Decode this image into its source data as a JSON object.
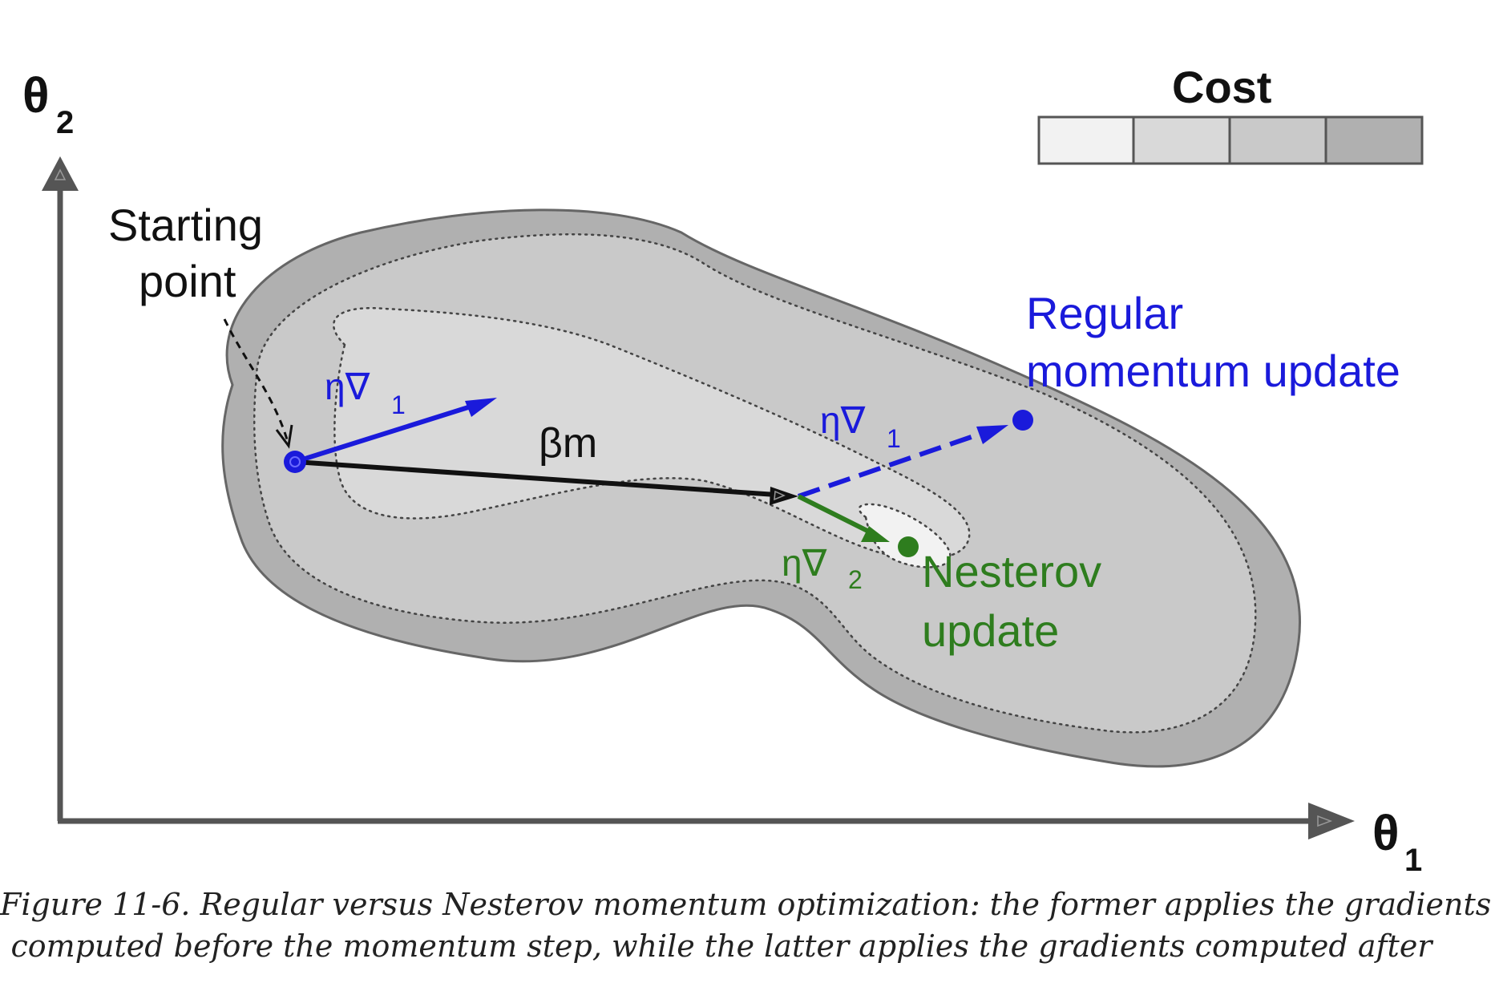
{
  "axes": {
    "y_label": "θ",
    "y_sub": "2",
    "x_label": "θ",
    "x_sub": "1"
  },
  "legend": {
    "title": "Cost",
    "swatches": [
      "#f2f2f2",
      "#d9d9d9",
      "#c9c9c9",
      "#b0b0b0"
    ]
  },
  "labels": {
    "starting_point_line1": "Starting",
    "starting_point_line2": "point",
    "grad1_symbol": "η∇",
    "grad1_sub": "1",
    "momentum": "βm",
    "grad1b_symbol": "η∇",
    "grad1b_sub": "1",
    "regular_line1": "Regular",
    "regular_line2": "momentum update",
    "grad2_symbol": "η∇",
    "grad2_sub": "2",
    "nesterov_line1": "Nesterov",
    "nesterov_line2": "update"
  },
  "colors": {
    "regular": "#1a1adb",
    "nesterov": "#2e7d1e",
    "momentum": "#111111",
    "axis": "#555555"
  },
  "caption": {
    "line1": "Figure 11-6. Regular versus Nesterov momentum optimization: the former applies the gradients",
    "line2": "computed before the momentum step, while the latter applies the gradients computed after"
  }
}
